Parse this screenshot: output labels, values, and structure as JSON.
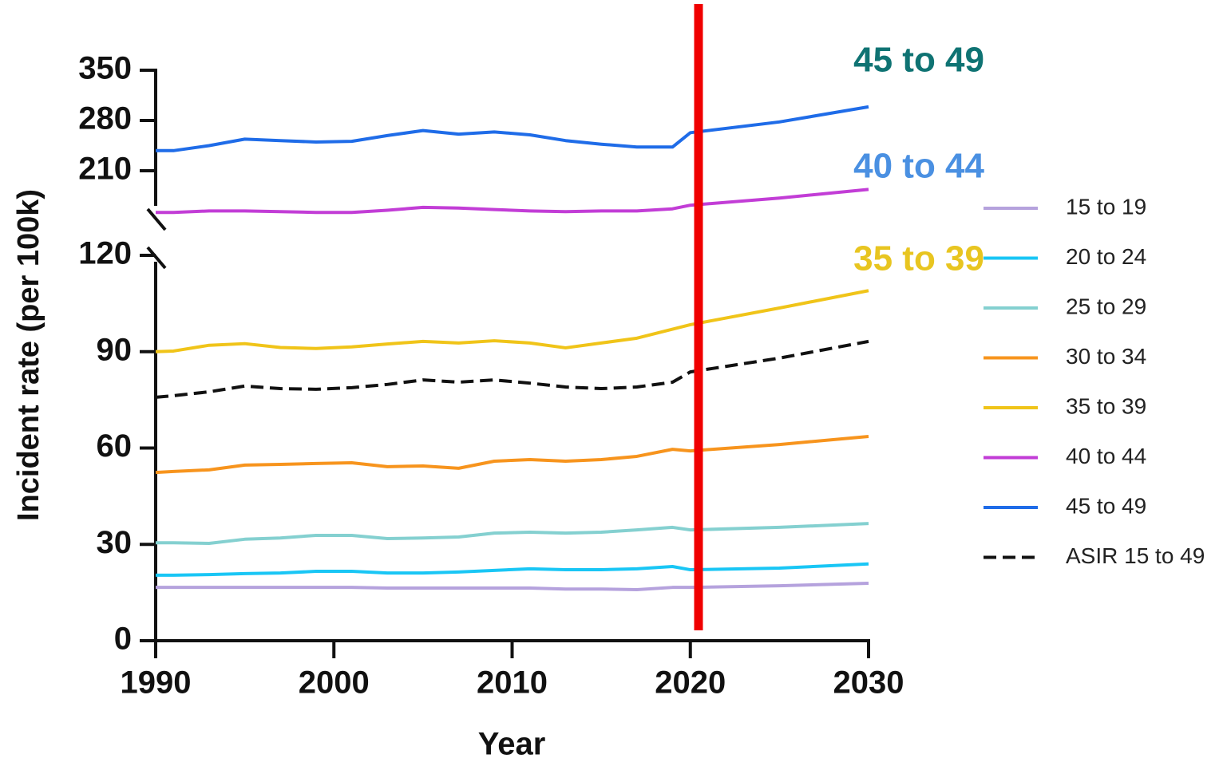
{
  "chart_data": {
    "type": "line",
    "x_label": "Year",
    "y_label": "Incident rate (per 100k)",
    "x": [
      1990,
      1991,
      1993,
      1995,
      1997,
      1999,
      2001,
      2003,
      2005,
      2007,
      2009,
      2011,
      2013,
      2015,
      2017,
      2019,
      2020,
      2025,
      2030
    ],
    "xlim": [
      1990,
      2030
    ],
    "xticks": [
      1990,
      2000,
      2010,
      2020,
      2030
    ],
    "ylim": [
      0,
      120
    ],
    "yticks": [
      0,
      30,
      60,
      90,
      120
    ],
    "y2lim": [
      150,
      350
    ],
    "y2ticks": [
      210,
      280,
      350
    ],
    "series": [
      {
        "name": "15 to 19",
        "color": "#b5a2dd",
        "values": [
          16.6,
          16.6,
          16.6,
          16.6,
          16.6,
          16.6,
          16.6,
          16.4,
          16.4,
          16.4,
          16.4,
          16.4,
          16.1,
          16.1,
          15.9,
          16.6,
          16.6,
          17.1,
          17.9
        ]
      },
      {
        "name": "20 to 24",
        "color": "#19c6f5",
        "values": [
          20.4,
          20.4,
          20.6,
          20.9,
          21.1,
          21.6,
          21.6,
          21.1,
          21.1,
          21.4,
          21.9,
          22.4,
          22.1,
          22.1,
          22.4,
          23.1,
          22.1,
          22.6,
          23.9
        ]
      },
      {
        "name": "25 to 29",
        "color": "#84d0d0",
        "values": [
          30.5,
          30.5,
          30.3,
          31.6,
          32,
          32.8,
          32.8,
          31.8,
          32,
          32.3,
          33.5,
          33.8,
          33.5,
          33.8,
          34.5,
          35.3,
          34.5,
          35.3,
          36.5
        ]
      },
      {
        "name": "30 to 34",
        "color": "#f7941d",
        "values": [
          52.4,
          52.7,
          53.2,
          54.7,
          54.9,
          55.2,
          55.4,
          54.2,
          54.4,
          53.7,
          55.9,
          56.4,
          55.9,
          56.4,
          57.4,
          59.6,
          59.1,
          61.1,
          63.6
        ]
      },
      {
        "name": "35 to 39",
        "color": "#f0c419",
        "values": [
          90,
          90.2,
          92,
          92.5,
          91.3,
          91,
          91.5,
          92.4,
          93.2,
          92.7,
          93.4,
          92.7,
          91.2,
          92.7,
          94.2,
          97,
          98.4,
          103.6,
          109
        ]
      },
      {
        "name": "40 to 44",
        "color": "#c23dd6",
        "axis": "y2",
        "values": [
          152,
          152,
          154,
          154,
          153,
          152,
          152,
          155,
          159,
          158,
          156,
          154,
          153,
          154,
          154,
          157,
          162,
          172,
          184
        ]
      },
      {
        "name": "45 to 49",
        "color": "#1f6ce8",
        "axis": "y2",
        "values": [
          238,
          238,
          245,
          254,
          252,
          250,
          251,
          259,
          266,
          261,
          264,
          260,
          252,
          247,
          243,
          243,
          263,
          278,
          299
        ]
      },
      {
        "name": "ASIR 15 to 49",
        "color": "#111111",
        "dashed": true,
        "values": [
          75.8,
          76.3,
          77.5,
          79.3,
          78.5,
          78.3,
          78.8,
          79.8,
          81.2,
          80.5,
          81.2,
          80.2,
          79,
          78.5,
          79,
          80.5,
          83.7,
          88,
          93.2
        ]
      }
    ],
    "annotations": [
      {
        "text": "45 to 49",
        "color": "#0f7373"
      },
      {
        "text": "40 to 44",
        "color": "#4a90e2"
      },
      {
        "text": "35 to 39",
        "color": "#e8c520"
      }
    ]
  }
}
